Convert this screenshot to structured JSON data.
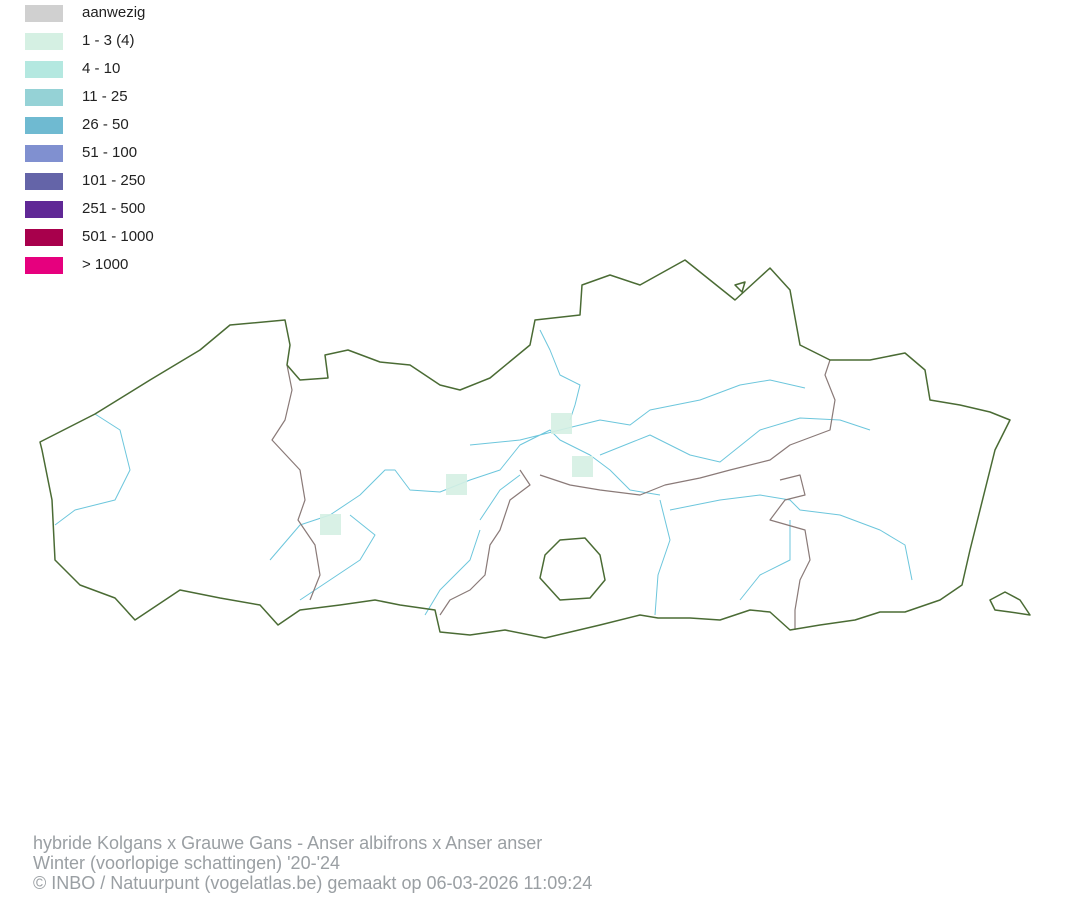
{
  "legend": {
    "items": [
      {
        "label": "aanwezig",
        "color": "#d0d0d0"
      },
      {
        "label": "1 - 3 (4)",
        "color": "#d5f0e3"
      },
      {
        "label": "4 - 10",
        "color": "#b4e8e0"
      },
      {
        "label": "11 - 25",
        "color": "#95d2d6"
      },
      {
        "label": "26 - 50",
        "color": "#6fbad1"
      },
      {
        "label": "51 - 100",
        "color": "#8090d0"
      },
      {
        "label": "101 - 250",
        "color": "#6464a8"
      },
      {
        "label": "251 - 500",
        "color": "#602896"
      },
      {
        "label": "501 - 1000",
        "color": "#a8004c"
      },
      {
        "label": "> 1000",
        "color": "#e6007e"
      }
    ]
  },
  "map": {
    "region_border_color": "#4a6b34",
    "province_border_color": "#8a7a78",
    "river_color": "#6cc6dc",
    "occupied_cell_color": "#d5f0e3",
    "occupied_cells_class": "1 - 3 (4)"
  },
  "footer": {
    "species": "hybride Kolgans x Grauwe Gans - Anser albifrons x Anser anser",
    "period": "Winter (voorlopige schattingen) '20-'24",
    "credit": "© INBO / Natuurpunt (vogelatlas.be) gemaakt op 06-03-2026 11:09:24"
  }
}
